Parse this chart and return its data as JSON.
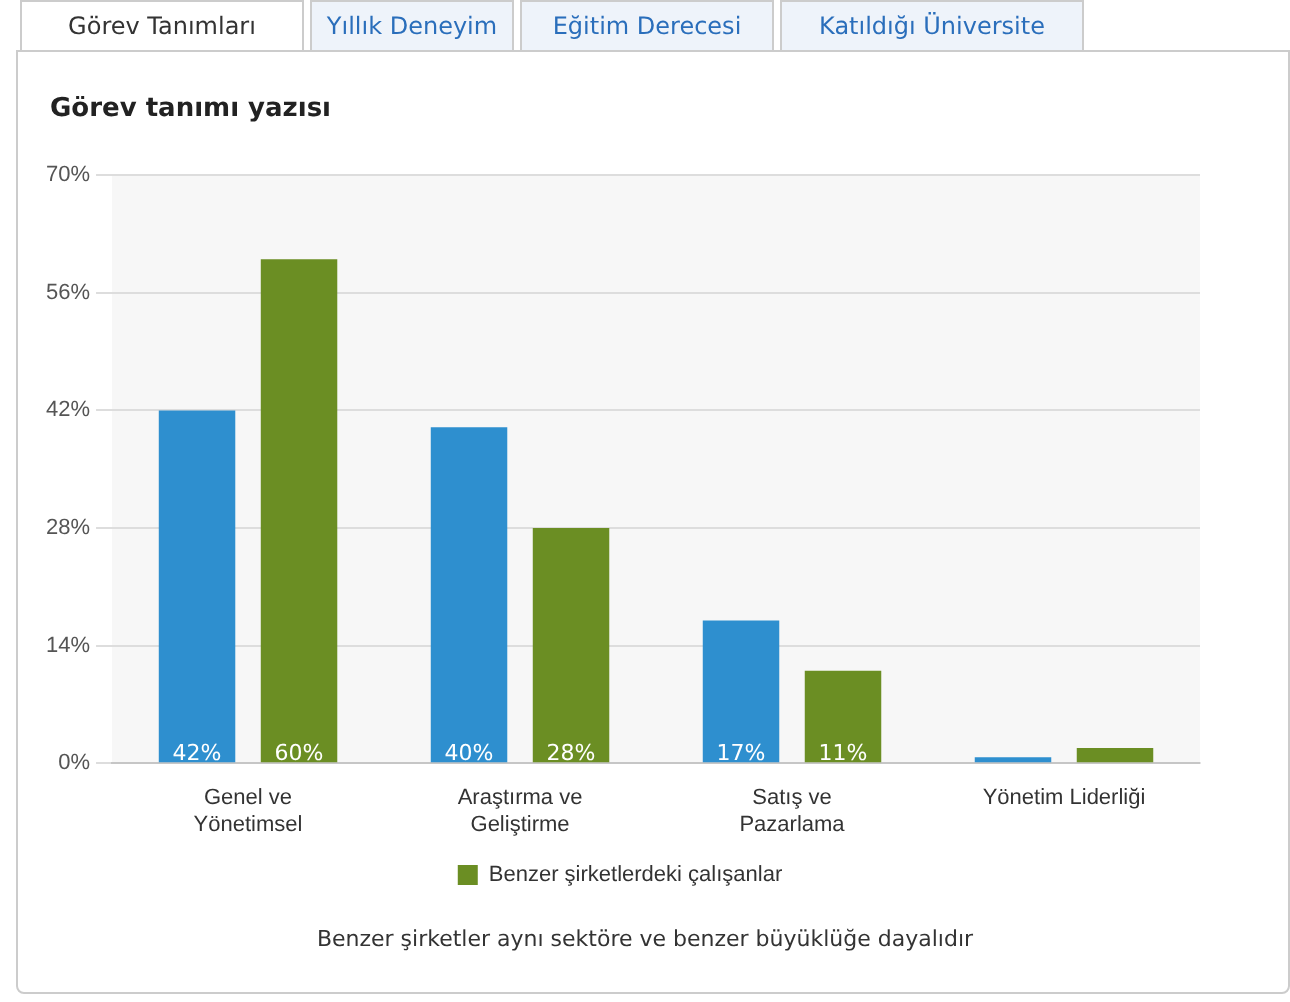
{
  "chart_data": {
    "type": "bar",
    "title": "Görev tanımı yazısı",
    "categories": [
      "Genel ve Yönetimsel",
      "Araştırma ve Geliştirme",
      "Satış ve Pazarlama",
      "Yönetim Liderliği"
    ],
    "series": [
      {
        "color": "#2e8fcf",
        "values": [
          42,
          40,
          17,
          0.7
        ],
        "value_labels": [
          "42%",
          "40%",
          "17%",
          null
        ]
      },
      {
        "name": "Benzer şirketlerdeki çalışanlar",
        "color": "#6b8e23",
        "values": [
          60,
          28,
          11,
          1.8
        ],
        "value_labels": [
          "60%",
          "28%",
          "11%",
          null
        ]
      }
    ],
    "ylim": [
      0,
      70
    ],
    "yticks": [
      {
        "value": 0,
        "label": "0%"
      },
      {
        "value": 14,
        "label": "14%"
      },
      {
        "value": 28,
        "label": "28%"
      },
      {
        "value": 42,
        "label": "42%"
      },
      {
        "value": 56,
        "label": "56%"
      },
      {
        "value": 70,
        "label": "70%"
      }
    ],
    "grid": "y",
    "legend": "bottom",
    "annotations": [
      "Görev Tanımları",
      "Yıllık Deneyim",
      "Eğitim Derecesi",
      "Katıldığı Üniversite",
      "Benzer şirketler aynı sektöre ve benzer büyüklüğe dayalıdır"
    ]
  }
}
